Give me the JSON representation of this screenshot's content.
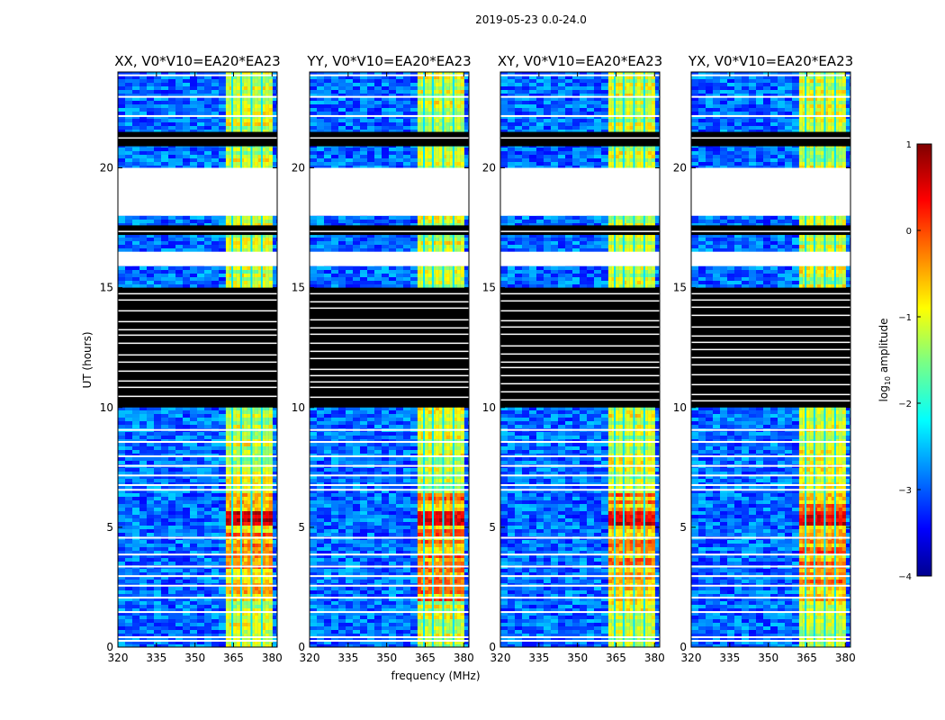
{
  "figure": {
    "suptitle": "2019-05-23 0.0-24.0",
    "xlabel": "frequency (MHz)",
    "ylabel": "UT (hours)",
    "colorbar_label_prefix": "log",
    "colorbar_label_sub": "10",
    "colorbar_label_suffix": " amplitude"
  },
  "chart_data": {
    "type": "heatmap",
    "title": "2019-05-23 0.0-24.0",
    "xlabel": "frequency (MHz)",
    "ylabel": "UT (hours)",
    "xlim": [
      320,
      382
    ],
    "ylim": [
      0,
      24
    ],
    "xticks": [
      "320",
      "335",
      "350",
      "365",
      "380"
    ],
    "yticks": [
      "0",
      "5",
      "10",
      "15",
      "20"
    ],
    "panels": [
      {
        "name": "XX",
        "title": "XX, V0*V10=EA20*EA23",
        "seed": 11
      },
      {
        "name": "YY",
        "title": "YY, V0*V10=EA20*EA23",
        "seed": 23
      },
      {
        "name": "XY",
        "title": "XY, V0*V10=EA20*EA23",
        "seed": 37
      },
      {
        "name": "YX",
        "title": "YX, V0*V10=EA20*EA23",
        "seed": 51
      }
    ],
    "colorbar": {
      "label": "log10 amplitude",
      "min": -4,
      "max": 1,
      "ticks": [
        "1",
        "0",
        "−1",
        "−2",
        "−3",
        "−4"
      ],
      "colormap": "jet"
    },
    "rfi_band_mhz": [
      362,
      379
    ],
    "rfi_channel_gaps_mhz": [
      364.5,
      368,
      372,
      376
    ],
    "missing_data_hours": [
      [
        10.0,
        15.0
      ],
      [
        15.9,
        16.5
      ],
      [
        17.2,
        17.6
      ],
      [
        18.0,
        20.0
      ],
      [
        20.9,
        21.5
      ]
    ],
    "bright_rfi_hours": [
      [
        5.2,
        5.8
      ]
    ]
  }
}
